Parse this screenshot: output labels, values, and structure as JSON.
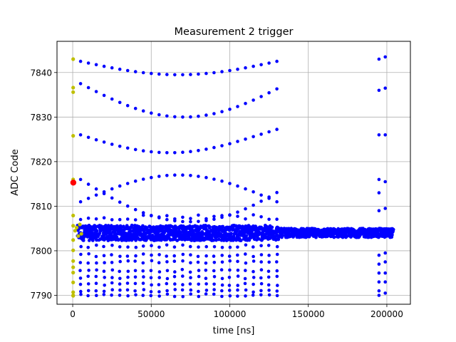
{
  "chart_data": {
    "type": "scatter",
    "title": "Measurement 2 trigger",
    "xlabel": "time [ns]",
    "ylabel": "ADC Code",
    "xlim": [
      -10000,
      215000
    ],
    "ylim": [
      7788,
      7847
    ],
    "xticks": [
      0,
      50000,
      100000,
      150000,
      200000
    ],
    "yticks": [
      7790,
      7800,
      7810,
      7820,
      7830,
      7840
    ],
    "grid": true,
    "colors": {
      "main": "#0000ff",
      "early": "#bfbf00",
      "marker": "#ff0000"
    },
    "series": [
      {
        "color": "#bfbf00",
        "points": [
          [
            300,
            7843.0
          ],
          [
            300,
            7836.6
          ],
          [
            300,
            7835.6
          ],
          [
            300,
            7825.8
          ],
          [
            300,
            7816.0
          ],
          [
            300,
            7807.9
          ],
          [
            300,
            7805.6
          ],
          [
            300,
            7802.4
          ],
          [
            300,
            7800.1
          ],
          [
            300,
            7797.7
          ],
          [
            300,
            7796.3
          ],
          [
            300,
            7795.1
          ],
          [
            300,
            7792.9
          ],
          [
            300,
            7790.7
          ],
          [
            300,
            7790.0
          ],
          [
            300,
            7789.9
          ],
          [
            1500,
            7804.5
          ],
          [
            2500,
            7805.2
          ],
          [
            3500,
            7803.3
          ],
          [
            4500,
            7805.9
          ],
          [
            5500,
            7803.8
          ]
        ]
      },
      {
        "color": "#ff0000",
        "points": [
          [
            400,
            7815.3
          ]
        ]
      }
    ]
  }
}
